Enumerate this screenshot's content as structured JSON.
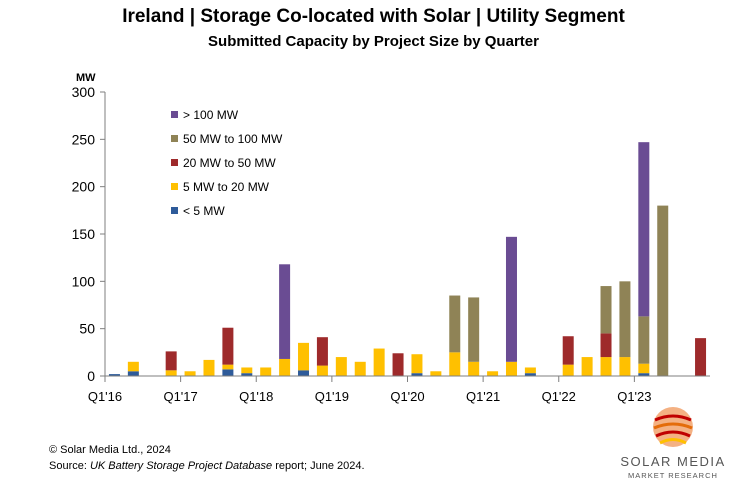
{
  "chart_data": {
    "type": "bar",
    "stacked": true,
    "title": "Ireland | Storage Co-located with Solar | Utility Segment",
    "subtitle": "Submitted Capacity by Project Size by Quarter",
    "ylabel": "MW",
    "xlabel": "",
    "ylim": [
      0,
      300
    ],
    "yticks": [
      0,
      50,
      100,
      150,
      200,
      250,
      300
    ],
    "grid": false,
    "legend_position": "top-left",
    "categories": [
      "Q1'16",
      "Q2'16",
      "Q3'16",
      "Q4'16",
      "Q1'17",
      "Q2'17",
      "Q3'17",
      "Q4'17",
      "Q1'18",
      "Q2'18",
      "Q3'18",
      "Q4'18",
      "Q1'19",
      "Q2'19",
      "Q3'19",
      "Q4'19",
      "Q1'20",
      "Q2'20",
      "Q3'20",
      "Q4'20",
      "Q1'21",
      "Q2'21",
      "Q3'21",
      "Q4'21",
      "Q1'22",
      "Q2'22",
      "Q3'22",
      "Q4'22",
      "Q1'23",
      "Q2'23",
      "Q3'23",
      "Q4'23"
    ],
    "xtick_labels": [
      {
        "index": 0,
        "label": "Q1'16"
      },
      {
        "index": 4,
        "label": "Q1'17"
      },
      {
        "index": 8,
        "label": "Q1'18"
      },
      {
        "index": 12,
        "label": "Q1'19"
      },
      {
        "index": 16,
        "label": "Q1'20"
      },
      {
        "index": 20,
        "label": "Q1'21"
      },
      {
        "index": 24,
        "label": "Q1'22"
      },
      {
        "index": 28,
        "label": "Q1'23"
      }
    ],
    "series": [
      {
        "name": "< 5 MW",
        "color": "#2E5B9A",
        "values": [
          2,
          5,
          0,
          0,
          0,
          0,
          7,
          3,
          0,
          0,
          6,
          0,
          0,
          0,
          0,
          0,
          3,
          0,
          0,
          0,
          0,
          0,
          3,
          0,
          0,
          0,
          0,
          0,
          3,
          0,
          0,
          0
        ]
      },
      {
        "name": "5 MW to 20 MW",
        "color": "#FFC000",
        "values": [
          0,
          10,
          0,
          6,
          5,
          17,
          5,
          6,
          9,
          18,
          29,
          11,
          20,
          15,
          29,
          0,
          20,
          5,
          25,
          15,
          5,
          15,
          6,
          0,
          12,
          20,
          20,
          20,
          10,
          0,
          0,
          0
        ]
      },
      {
        "name": "20 MW to 50 MW",
        "color": "#9E2A2B",
        "values": [
          0,
          0,
          0,
          20,
          0,
          0,
          39,
          0,
          0,
          0,
          0,
          30,
          0,
          0,
          0,
          24,
          0,
          0,
          0,
          0,
          0,
          0,
          0,
          0,
          30,
          0,
          25,
          0,
          0,
          0,
          0,
          40
        ]
      },
      {
        "name": "50 MW to 100 MW",
        "color": "#8F8356",
        "values": [
          0,
          0,
          0,
          0,
          0,
          0,
          0,
          0,
          0,
          0,
          0,
          0,
          0,
          0,
          0,
          0,
          0,
          0,
          60,
          68,
          0,
          0,
          0,
          0,
          0,
          0,
          50,
          80,
          50,
          180,
          0,
          0
        ]
      },
      {
        "name": "> 100 MW",
        "color": "#6A4C93",
        "values": [
          0,
          0,
          0,
          0,
          0,
          0,
          0,
          0,
          0,
          100,
          0,
          0,
          0,
          0,
          0,
          0,
          0,
          0,
          0,
          0,
          0,
          132,
          0,
          0,
          0,
          0,
          0,
          0,
          184,
          0,
          0,
          0
        ]
      }
    ]
  },
  "footer": {
    "copyright": "© Solar Media Ltd., 2024",
    "source_prefix": "Source: ",
    "source_italic": "UK Battery Storage Project Database",
    "source_suffix": " report; June 2024."
  },
  "logo": {
    "line1": "SOLAR MEDIA",
    "line2": "MARKET RESEARCH"
  }
}
